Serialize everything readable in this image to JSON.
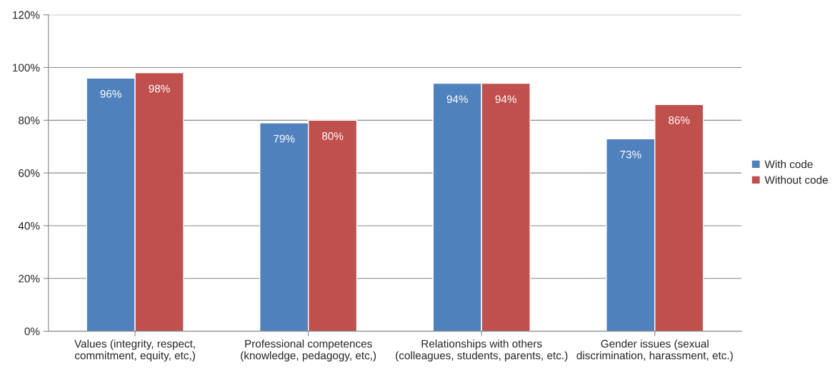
{
  "chart_data": {
    "type": "bar",
    "categories": [
      "Values (integrity, respect,\ncommitment, equity, etc,)",
      "Professional competences\n(knowledge, pedagogy, etc,)",
      "Relationships with others\n(colleagues, students, parents, etc.)",
      "Gender issues (sexual\ndiscrimination, harassment, etc.)"
    ],
    "series": [
      {
        "name": "With code",
        "color": "#4f81bd",
        "values": [
          96,
          79,
          94,
          73
        ],
        "value_labels": [
          "96%",
          "79%",
          "94%",
          "73%"
        ]
      },
      {
        "name": "Without code",
        "color": "#c0504d",
        "values": [
          98,
          80,
          94,
          86
        ],
        "value_labels": [
          "98%",
          "80%",
          "94%",
          "86%"
        ]
      }
    ],
    "ylim": [
      0,
      120
    ],
    "yticks": [
      {
        "value": 0,
        "label": "0%"
      },
      {
        "value": 20,
        "label": "20%"
      },
      {
        "value": 40,
        "label": "40%"
      },
      {
        "value": 60,
        "label": "60%"
      },
      {
        "value": 80,
        "label": "80%"
      },
      {
        "value": 100,
        "label": "100%"
      },
      {
        "value": 120,
        "label": "120%"
      }
    ],
    "grid": "y",
    "legend": "right"
  }
}
